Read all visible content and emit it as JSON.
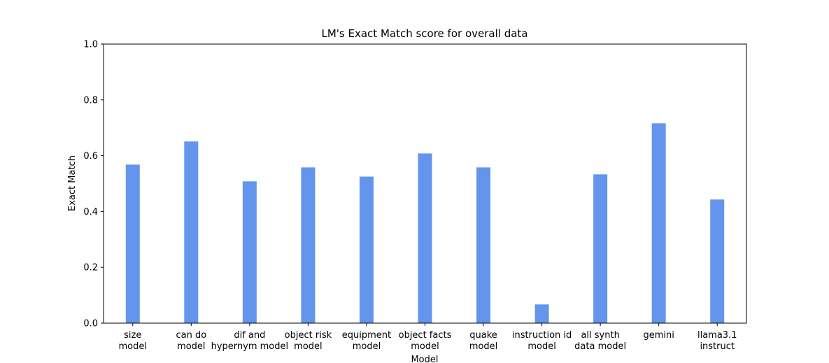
{
  "chart_data": {
    "type": "bar",
    "title": "LM's Exact Match score for overall data",
    "xlabel": "Model",
    "ylabel": "Exact Match",
    "ylim": [
      0,
      1.0
    ],
    "yticks": [
      "0.0",
      "0.2",
      "0.4",
      "0.6",
      "0.8",
      "1.0"
    ],
    "categories": [
      [
        "size",
        "model"
      ],
      [
        "can do",
        "model"
      ],
      [
        "dif and",
        "hypernym model"
      ],
      [
        "object risk",
        "model"
      ],
      [
        "equipment",
        "model"
      ],
      [
        "object facts",
        "model"
      ],
      [
        "quake",
        "model"
      ],
      [
        "instruction id",
        "model"
      ],
      [
        "all synth",
        "data model"
      ],
      [
        "gemini"
      ],
      [
        "llama3.1",
        "instruct"
      ]
    ],
    "values": [
      0.568,
      0.651,
      0.508,
      0.558,
      0.525,
      0.608,
      0.558,
      0.067,
      0.533,
      0.716,
      0.443
    ],
    "bar_color": "#6495ed",
    "grid": false,
    "legend": "none"
  }
}
